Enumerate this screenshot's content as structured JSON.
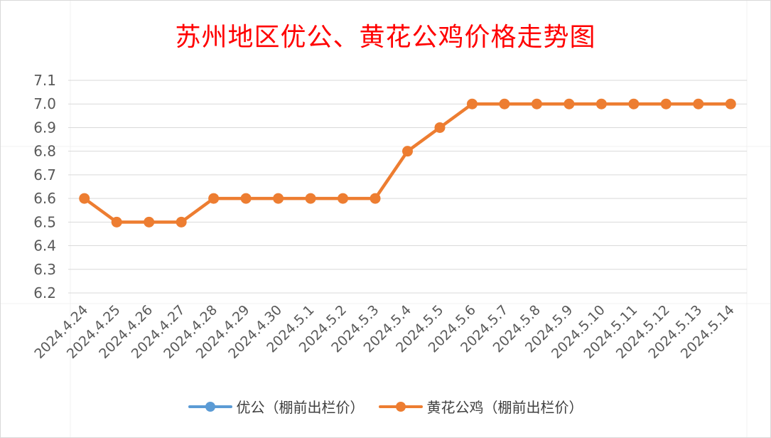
{
  "title": "苏州地区优公、黄花公鸡价格走势图",
  "colors": {
    "title": "#ff0000",
    "series_0": "#5b9bd5",
    "series_1": "#ed7d31",
    "gridline": "#d9d9d9",
    "tick_text": "#595959"
  },
  "chart_data": {
    "type": "line",
    "title": "苏州地区优公、黄花公鸡价格走势图",
    "xlabel": "",
    "ylabel": "",
    "categories": [
      "2024.4.24",
      "2024.4.25",
      "2024.4.26",
      "2024.4.27",
      "2024.4.28",
      "2024.4.29",
      "2024.4.30",
      "2024.5.1",
      "2024.5.2",
      "2024.5.3",
      "2024.5.4",
      "2024.5.5",
      "2024.5.6",
      "2024.5.7",
      "2024.5.8",
      "2024.5.9",
      "2024.5.10",
      "2024.5.11",
      "2024.5.12",
      "2024.5.13",
      "2024.5.14"
    ],
    "ylim": [
      6.2,
      7.1
    ],
    "yticks": [
      "6.2",
      "6.3",
      "6.4",
      "6.5",
      "6.6",
      "6.7",
      "6.8",
      "6.9",
      "7.0",
      "7.1"
    ],
    "grid": true,
    "legend_position": "bottom",
    "series": [
      {
        "name": "优公（棚前出栏价）",
        "color": "#5b9bd5",
        "values": [
          null,
          null,
          null,
          null,
          null,
          null,
          null,
          null,
          null,
          null,
          null,
          null,
          null,
          null,
          null,
          null,
          null,
          null,
          null,
          null,
          null
        ]
      },
      {
        "name": "黄花公鸡（棚前出栏价）",
        "color": "#ed7d31",
        "values": [
          6.6,
          6.5,
          6.5,
          6.5,
          6.6,
          6.6,
          6.6,
          6.6,
          6.6,
          6.6,
          6.8,
          6.9,
          7.0,
          7.0,
          7.0,
          7.0,
          7.0,
          7.0,
          7.0,
          7.0,
          7.0
        ]
      }
    ]
  },
  "legend": {
    "items": [
      {
        "label": "优公（棚前出栏价）",
        "color": "#5b9bd5"
      },
      {
        "label": "黄花公鸡（棚前出栏价）",
        "color": "#ed7d31"
      }
    ]
  }
}
